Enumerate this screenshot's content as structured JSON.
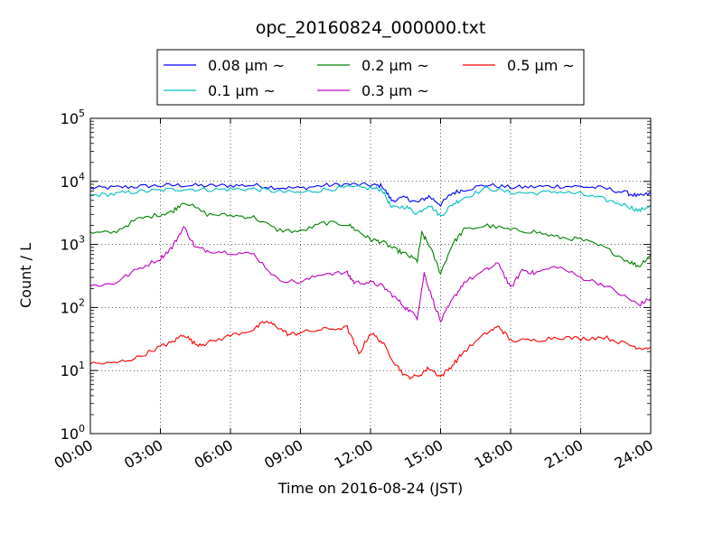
{
  "chart_data": {
    "type": "line",
    "title": "opc_20160824_000000.txt",
    "xlabel": "Time on 2016-08-24 (JST)",
    "ylabel": "Count / L",
    "y_scale": "log",
    "ylim": [
      1,
      100000
    ],
    "xlim_hours": [
      0,
      24
    ],
    "grid": true,
    "legend_placement": "top, outside above plot, 3 columns",
    "x_ticks": [
      {
        "hour": 0,
        "label": "00:00"
      },
      {
        "hour": 3,
        "label": "03:00"
      },
      {
        "hour": 6,
        "label": "06:00"
      },
      {
        "hour": 9,
        "label": "09:00"
      },
      {
        "hour": 12,
        "label": "12:00"
      },
      {
        "hour": 15,
        "label": "15:00"
      },
      {
        "hour": 18,
        "label": "18:00"
      },
      {
        "hour": 21,
        "label": "21:00"
      },
      {
        "hour": 24,
        "label": "24:00"
      }
    ],
    "y_ticks": [
      {
        "value": 1,
        "base": "10",
        "exp": "0"
      },
      {
        "value": 10,
        "base": "10",
        "exp": "1"
      },
      {
        "value": 100,
        "base": "10",
        "exp": "2"
      },
      {
        "value": 1000,
        "base": "10",
        "exp": "3"
      },
      {
        "value": 10000,
        "base": "10",
        "exp": "4"
      },
      {
        "value": 100000,
        "base": "10",
        "exp": "5"
      }
    ],
    "series": [
      {
        "name": "0.08 μm ~",
        "color": "#0000ff",
        "points": [
          [
            0,
            7800
          ],
          [
            1,
            8000
          ],
          [
            2,
            8300
          ],
          [
            3,
            8600
          ],
          [
            4,
            8700
          ],
          [
            5,
            8500
          ],
          [
            6,
            8600
          ],
          [
            7,
            8700
          ],
          [
            8,
            8000
          ],
          [
            9,
            7800
          ],
          [
            10,
            8600
          ],
          [
            11,
            9000
          ],
          [
            12,
            8700
          ],
          [
            12.5,
            8500
          ],
          [
            12.9,
            5000
          ],
          [
            13.5,
            5500
          ],
          [
            14,
            4600
          ],
          [
            14.5,
            5800
          ],
          [
            15,
            4300
          ],
          [
            15.5,
            6500
          ],
          [
            16,
            7400
          ],
          [
            17,
            8800
          ],
          [
            18,
            8000
          ],
          [
            19,
            8200
          ],
          [
            20,
            8400
          ],
          [
            21,
            8300
          ],
          [
            22,
            7800
          ],
          [
            23,
            6500
          ],
          [
            23.5,
            5800
          ],
          [
            24,
            6400
          ]
        ]
      },
      {
        "name": "0.1 μm ~",
        "color": "#00bfbf",
        "points": [
          [
            0,
            6000
          ],
          [
            1,
            6300
          ],
          [
            2,
            6900
          ],
          [
            3,
            7200
          ],
          [
            4,
            7600
          ],
          [
            5,
            7400
          ],
          [
            6,
            7500
          ],
          [
            7,
            7600
          ],
          [
            8,
            6900
          ],
          [
            9,
            6600
          ],
          [
            10,
            7400
          ],
          [
            11,
            8000
          ],
          [
            12,
            7800
          ],
          [
            12.5,
            7400
          ],
          [
            12.9,
            3800
          ],
          [
            13.5,
            4000
          ],
          [
            14,
            3100
          ],
          [
            14.5,
            4300
          ],
          [
            15,
            2800
          ],
          [
            15.5,
            4300
          ],
          [
            16,
            5500
          ],
          [
            17,
            7800
          ],
          [
            18,
            6700
          ],
          [
            19,
            6500
          ],
          [
            20,
            6900
          ],
          [
            21,
            6300
          ],
          [
            22,
            5200
          ],
          [
            23,
            4100
          ],
          [
            23.5,
            3400
          ],
          [
            24,
            4200
          ]
        ]
      },
      {
        "name": "0.2 μm ~",
        "color": "#008000",
        "points": [
          [
            0,
            1500
          ],
          [
            1,
            1550
          ],
          [
            2,
            2500
          ],
          [
            3,
            3000
          ],
          [
            3.5,
            3300
          ],
          [
            4,
            4800
          ],
          [
            5,
            3000
          ],
          [
            6,
            2900
          ],
          [
            7,
            2700
          ],
          [
            8,
            1700
          ],
          [
            9,
            1600
          ],
          [
            10,
            2200
          ],
          [
            11,
            2100
          ],
          [
            11.5,
            1600
          ],
          [
            12,
            1200
          ],
          [
            12.5,
            1100
          ],
          [
            13,
            850
          ],
          [
            13.5,
            700
          ],
          [
            14,
            550
          ],
          [
            14.2,
            1500
          ],
          [
            14.5,
            1000
          ],
          [
            15,
            350
          ],
          [
            15.5,
            1000
          ],
          [
            16,
            1700
          ],
          [
            17,
            2000
          ],
          [
            18,
            1700
          ],
          [
            19,
            1600
          ],
          [
            20,
            1300
          ],
          [
            21,
            1200
          ],
          [
            22,
            900
          ],
          [
            23,
            550
          ],
          [
            23.5,
            450
          ],
          [
            24,
            700
          ]
        ]
      },
      {
        "name": "0.3 μm ~",
        "color": "#bf00bf",
        "points": [
          [
            0,
            220
          ],
          [
            1,
            240
          ],
          [
            2,
            400
          ],
          [
            3,
            600
          ],
          [
            3.5,
            900
          ],
          [
            4,
            1900
          ],
          [
            4.5,
            900
          ],
          [
            5,
            800
          ],
          [
            6,
            750
          ],
          [
            7,
            700
          ],
          [
            8,
            280
          ],
          [
            9,
            250
          ],
          [
            10,
            350
          ],
          [
            11,
            350
          ],
          [
            11.3,
            250
          ],
          [
            12,
            250
          ],
          [
            12.5,
            220
          ],
          [
            13,
            150
          ],
          [
            13.5,
            100
          ],
          [
            14,
            70
          ],
          [
            14.3,
            350
          ],
          [
            14.5,
            200
          ],
          [
            15,
            60
          ],
          [
            15.5,
            130
          ],
          [
            16,
            250
          ],
          [
            17,
            400
          ],
          [
            17.5,
            500
          ],
          [
            18,
            200
          ],
          [
            18.5,
            400
          ],
          [
            19,
            350
          ],
          [
            20,
            450
          ],
          [
            21,
            300
          ],
          [
            22,
            230
          ],
          [
            23,
            140
          ],
          [
            23.5,
            110
          ],
          [
            24,
            140
          ]
        ]
      },
      {
        "name": "0.5 μm ~",
        "color": "#ff0000",
        "points": [
          [
            0,
            13
          ],
          [
            1,
            13
          ],
          [
            2,
            16
          ],
          [
            3,
            24
          ],
          [
            3.5,
            28
          ],
          [
            4,
            38
          ],
          [
            4.5,
            26
          ],
          [
            5,
            27
          ],
          [
            6,
            36
          ],
          [
            7,
            45
          ],
          [
            7.5,
            60
          ],
          [
            8,
            50
          ],
          [
            8.5,
            37
          ],
          [
            9,
            40
          ],
          [
            10,
            45
          ],
          [
            11,
            48
          ],
          [
            11.5,
            18
          ],
          [
            12,
            40
          ],
          [
            12.5,
            28
          ],
          [
            13,
            14
          ],
          [
            13.5,
            8
          ],
          [
            14,
            8
          ],
          [
            14.5,
            11
          ],
          [
            15,
            8
          ],
          [
            15.5,
            12
          ],
          [
            16,
            20
          ],
          [
            17,
            40
          ],
          [
            17.5,
            50
          ],
          [
            18,
            30
          ],
          [
            19,
            30
          ],
          [
            20,
            34
          ],
          [
            21,
            32
          ],
          [
            22,
            34
          ],
          [
            23,
            26
          ],
          [
            23.5,
            23
          ],
          [
            24,
            23
          ]
        ]
      }
    ]
  }
}
